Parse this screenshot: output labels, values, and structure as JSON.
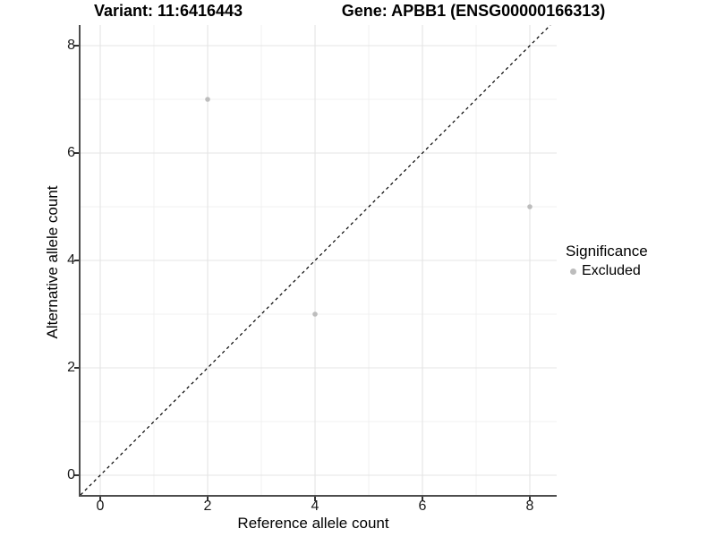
{
  "chart_data": {
    "type": "scatter",
    "title_left": "Variant: 11:6416443",
    "title_right": "Gene: APBB1 (ENSG00000166313)",
    "xlabel": "Reference allele count",
    "ylabel": "Alternative allele count",
    "xlim": [
      -0.3667,
      8.5
    ],
    "ylim": [
      -0.3667,
      8.3833
    ],
    "x_major_ticks": [
      0,
      2,
      4,
      6,
      8
    ],
    "y_major_ticks": [
      0,
      2,
      4,
      6,
      8
    ],
    "x_minor_gridlines": [
      1,
      3,
      5,
      7
    ],
    "y_minor_gridlines": [
      1,
      3,
      5,
      7
    ],
    "grid": true,
    "legend_position": "right",
    "series": [
      {
        "name": "Excluded",
        "marker": "circle",
        "color": "#bdbdbd",
        "points": [
          {
            "x": 2,
            "y": 7
          },
          {
            "x": 4,
            "y": 3
          },
          {
            "x": 8,
            "y": 5
          }
        ]
      }
    ],
    "reference_line": {
      "type": "identity",
      "equation": "y = x",
      "style": "dashed",
      "color": "#000000",
      "x1": -0.3667,
      "y1": -0.3667,
      "x2": 8.3833,
      "y2": 8.3833
    },
    "legend": {
      "title": "Significance",
      "entries": [
        {
          "label": "Excluded",
          "color": "#bdbdbd",
          "marker": "circle"
        }
      ]
    }
  },
  "colors": {
    "background": "#ffffff",
    "grid_major": "#e4e4e4",
    "grid_minor": "#f1f1f1",
    "axis_line": "#4d4d4d",
    "tick_mark": "#333333",
    "text": "#000000",
    "point": "#bdbdbd"
  }
}
